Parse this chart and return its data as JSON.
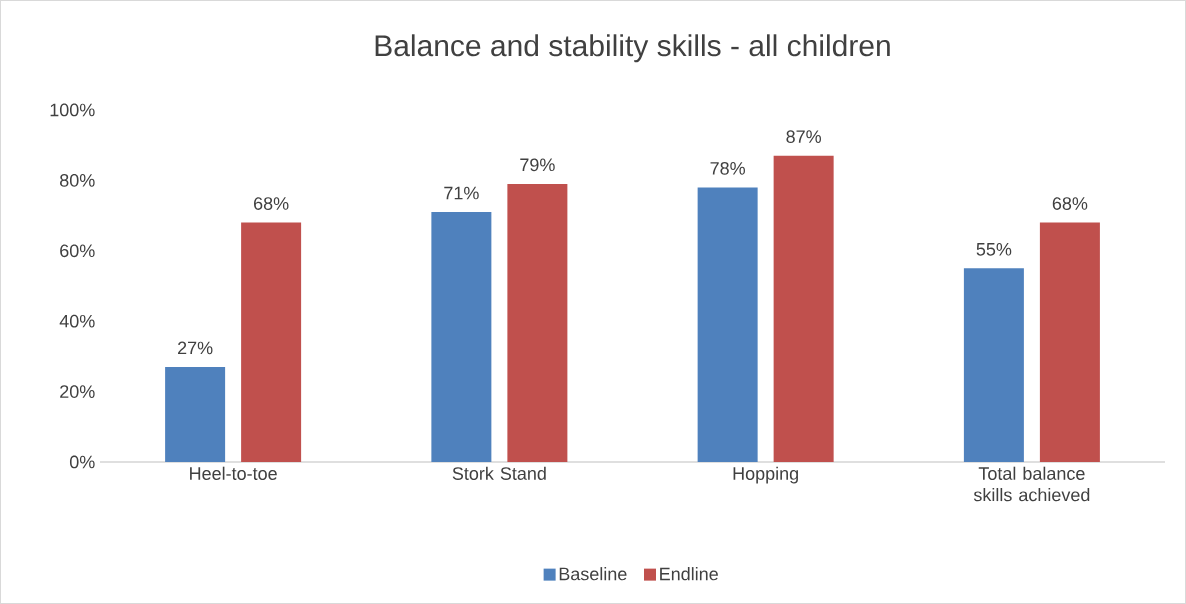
{
  "chart_data": {
    "type": "bar",
    "title": "Balance and stability skills - all children",
    "categories": [
      "Heel-to-toe",
      "Stork Stand",
      "Hopping",
      "Total balance skills achieved"
    ],
    "series": [
      {
        "name": "Baseline",
        "color": "#4f81bd",
        "values": [
          27,
          71,
          78,
          55
        ],
        "value_labels": [
          "27%",
          "71%",
          "78%",
          "55%"
        ]
      },
      {
        "name": "Endline",
        "color": "#c0504d",
        "values": [
          68,
          79,
          87,
          68
        ],
        "value_labels": [
          "68%",
          "79%",
          "87%",
          "68%"
        ]
      }
    ],
    "ylim": [
      0,
      100
    ],
    "yticks": [
      {
        "value": 0,
        "label": "0%"
      },
      {
        "value": 20,
        "label": "20%"
      },
      {
        "value": 40,
        "label": "40%"
      },
      {
        "value": 60,
        "label": "60%"
      },
      {
        "value": 80,
        "label": "80%"
      },
      {
        "value": 100,
        "label": "100%"
      }
    ],
    "legend": "bottom"
  }
}
